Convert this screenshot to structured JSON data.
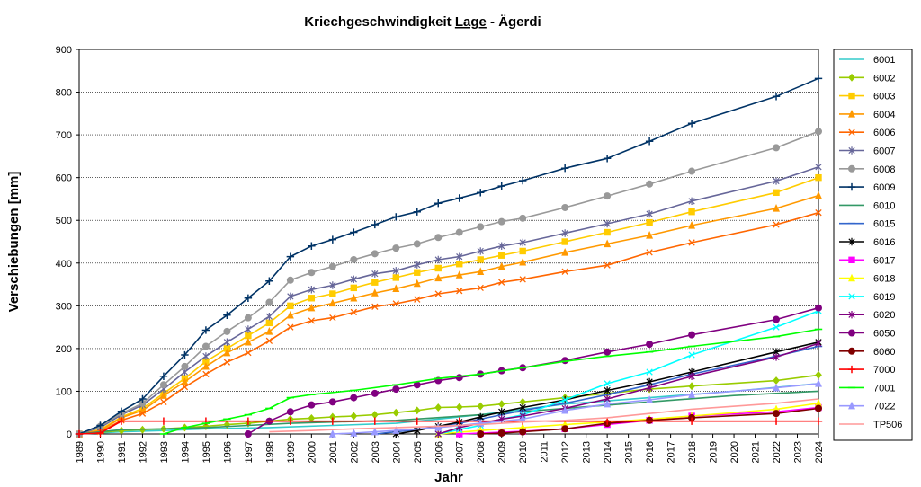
{
  "chart_data": {
    "type": "line",
    "title": "Kriechgeschwindigkeit Lage - Ägerdi",
    "title_parts": [
      "Kriechgeschwindigkeit ",
      "Lage",
      " - Ägerdi"
    ],
    "xlabel": "Jahr",
    "ylabel": "Verschiebungen   [mm]",
    "xlim": [
      1989,
      2024
    ],
    "ylim": [
      0,
      900
    ],
    "yticks": [
      0,
      100,
      200,
      300,
      400,
      500,
      600,
      700,
      800,
      900
    ],
    "grid": "horizontal",
    "legend": "right",
    "series": [
      {
        "name": "6001",
        "color": "#33CCCC",
        "marker": "none",
        "x": [
          1989,
          1991,
          1993,
          1995,
          1998,
          2001,
          2004,
          2008,
          2012,
          2016,
          2020,
          2024
        ],
        "y": [
          0,
          5,
          8,
          12,
          15,
          20,
          25,
          45,
          70,
          85,
          100,
          118
        ]
      },
      {
        "name": "6002",
        "color": "#99CC00",
        "marker": "diamond",
        "x": [
          1989,
          1991,
          1992,
          1993,
          1994,
          1995,
          1996,
          1997,
          1998,
          1999,
          2000,
          2001,
          2002,
          2003,
          2004,
          2005,
          2006,
          2007,
          2008,
          2009,
          2010,
          2012,
          2014,
          2016,
          2018,
          2022,
          2024
        ],
        "y": [
          0,
          8,
          10,
          12,
          15,
          18,
          22,
          25,
          30,
          35,
          37,
          40,
          42,
          45,
          50,
          55,
          62,
          63,
          65,
          70,
          75,
          85,
          95,
          105,
          112,
          125,
          138
        ]
      },
      {
        "name": "6003",
        "color": "#FFCC00",
        "marker": "square",
        "x": [
          1989,
          1990,
          1991,
          1992,
          1993,
          1994,
          1995,
          1996,
          1997,
          1998,
          1999,
          2000,
          2001,
          2002,
          2003,
          2004,
          2005,
          2006,
          2007,
          2008,
          2009,
          2010,
          2012,
          2014,
          2016,
          2018,
          2022,
          2024
        ],
        "y": [
          0,
          10,
          40,
          60,
          95,
          130,
          170,
          200,
          230,
          260,
          300,
          318,
          328,
          342,
          355,
          366,
          378,
          388,
          398,
          408,
          418,
          428,
          450,
          472,
          495,
          520,
          565,
          600
        ]
      },
      {
        "name": "6004",
        "color": "#FF9900",
        "marker": "triangle",
        "x": [
          1989,
          1990,
          1991,
          1992,
          1993,
          1994,
          1995,
          1996,
          1997,
          1998,
          1999,
          2000,
          2001,
          2002,
          2003,
          2004,
          2005,
          2006,
          2007,
          2008,
          2009,
          2010,
          2012,
          2014,
          2016,
          2018,
          2022,
          2024
        ],
        "y": [
          0,
          8,
          38,
          55,
          90,
          122,
          158,
          190,
          215,
          240,
          278,
          295,
          306,
          318,
          330,
          340,
          352,
          365,
          372,
          380,
          392,
          402,
          425,
          445,
          465,
          488,
          528,
          558
        ]
      },
      {
        "name": "6006",
        "color": "#FF6600",
        "marker": "x",
        "x": [
          1989,
          1990,
          1991,
          1992,
          1993,
          1994,
          1995,
          1996,
          1997,
          1998,
          1999,
          2000,
          2001,
          2002,
          2003,
          2004,
          2005,
          2006,
          2007,
          2008,
          2009,
          2010,
          2012,
          2014,
          2016,
          2018,
          2022,
          2024
        ],
        "y": [
          0,
          5,
          32,
          48,
          75,
          110,
          140,
          168,
          190,
          218,
          250,
          265,
          272,
          285,
          298,
          305,
          315,
          328,
          335,
          342,
          355,
          362,
          380,
          395,
          425,
          448,
          490,
          518
        ]
      },
      {
        "name": "6007",
        "color": "#666699",
        "marker": "star",
        "x": [
          1989,
          1990,
          1991,
          1992,
          1993,
          1994,
          1995,
          1996,
          1997,
          1998,
          1999,
          2000,
          2001,
          2002,
          2003,
          2004,
          2005,
          2006,
          2007,
          2008,
          2009,
          2010,
          2012,
          2014,
          2016,
          2018,
          2022,
          2024
        ],
        "y": [
          0,
          15,
          45,
          68,
          105,
          145,
          182,
          215,
          245,
          275,
          322,
          338,
          348,
          362,
          375,
          382,
          396,
          408,
          415,
          428,
          440,
          448,
          470,
          492,
          515,
          545,
          592,
          625
        ]
      },
      {
        "name": "6008",
        "color": "#999999",
        "marker": "circle",
        "x": [
          1989,
          1990,
          1991,
          1992,
          1993,
          1994,
          1995,
          1996,
          1997,
          1998,
          1999,
          2000,
          2001,
          2002,
          2003,
          2004,
          2005,
          2006,
          2007,
          2008,
          2009,
          2010,
          2012,
          2014,
          2016,
          2018,
          2022,
          2024
        ],
        "y": [
          0,
          18,
          48,
          72,
          115,
          158,
          205,
          240,
          272,
          308,
          360,
          378,
          392,
          408,
          422,
          435,
          445,
          460,
          472,
          485,
          497,
          505,
          530,
          557,
          585,
          615,
          670,
          708
        ]
      },
      {
        "name": "6009",
        "color": "#003366",
        "marker": "plus",
        "x": [
          1989,
          1990,
          1991,
          1992,
          1993,
          1994,
          1995,
          1996,
          1997,
          1998,
          1999,
          2000,
          2001,
          2002,
          2003,
          2004,
          2005,
          2006,
          2007,
          2008,
          2009,
          2010,
          2012,
          2014,
          2016,
          2018,
          2022,
          2024
        ],
        "y": [
          0,
          20,
          53,
          82,
          135,
          185,
          243,
          278,
          318,
          358,
          415,
          440,
          455,
          472,
          490,
          508,
          520,
          540,
          552,
          565,
          580,
          593,
          622,
          645,
          685,
          727,
          790,
          832
        ]
      },
      {
        "name": "6010",
        "color": "#339966",
        "marker": "none",
        "x": [
          1989,
          1991,
          1993,
          1995,
          1997,
          1999,
          2001,
          2004,
          2008,
          2012,
          2016,
          2020,
          2024
        ],
        "y": [
          0,
          10,
          12,
          15,
          20,
          25,
          28,
          32,
          45,
          60,
          75,
          90,
          100
        ]
      },
      {
        "name": "6015",
        "color": "#3366CC",
        "marker": "dash",
        "x": [
          2003,
          2004,
          2005,
          2006,
          2007,
          2008,
          2009,
          2010,
          2012,
          2014,
          2016,
          2018,
          2022,
          2024
        ],
        "y": [
          0,
          5,
          10,
          18,
          25,
          35,
          45,
          55,
          72,
          92,
          115,
          140,
          182,
          205
        ]
      },
      {
        "name": "6016",
        "color": "#000000",
        "marker": "star",
        "x": [
          2004,
          2005,
          2006,
          2007,
          2008,
          2009,
          2010,
          2012,
          2014,
          2016,
          2018,
          2022,
          2024
        ],
        "y": [
          0,
          8,
          18,
          28,
          40,
          52,
          62,
          80,
          102,
          122,
          145,
          192,
          215
        ]
      },
      {
        "name": "6017",
        "color": "#FF00FF",
        "marker": "square",
        "x": [
          2007,
          2008,
          2009,
          2010,
          2012,
          2014,
          2016,
          2018,
          2022,
          2024
        ],
        "y": [
          0,
          2,
          4,
          6,
          12,
          22,
          32,
          42,
          52,
          62
        ]
      },
      {
        "name": "6018",
        "color": "#FFFF00",
        "marker": "triangle",
        "x": [
          2006,
          2008,
          2010,
          2012,
          2014,
          2016,
          2018,
          2022,
          2024
        ],
        "y": [
          0,
          8,
          15,
          22,
          28,
          35,
          42,
          58,
          72
        ]
      },
      {
        "name": "6019",
        "color": "#00FFFF",
        "marker": "x",
        "x": [
          2006,
          2007,
          2008,
          2009,
          2010,
          2012,
          2014,
          2016,
          2018,
          2022,
          2024
        ],
        "y": [
          0,
          10,
          20,
          35,
          45,
          80,
          118,
          145,
          185,
          250,
          288
        ]
      },
      {
        "name": "6020",
        "color": "#800080",
        "marker": "star",
        "x": [
          2006,
          2007,
          2008,
          2009,
          2010,
          2012,
          2014,
          2016,
          2018,
          2022,
          2024
        ],
        "y": [
          0,
          15,
          25,
          35,
          42,
          60,
          82,
          108,
          135,
          180,
          212
        ]
      },
      {
        "name": "6050",
        "color": "#800080",
        "marker": "circle",
        "x": [
          1997,
          1998,
          1999,
          2000,
          2001,
          2002,
          2003,
          2004,
          2005,
          2006,
          2007,
          2008,
          2009,
          2010,
          2012,
          2014,
          2016,
          2018,
          2022,
          2024
        ],
        "y": [
          0,
          30,
          52,
          68,
          75,
          85,
          95,
          105,
          115,
          125,
          132,
          140,
          148,
          155,
          172,
          192,
          210,
          232,
          268,
          295
        ]
      },
      {
        "name": "6060",
        "color": "#800000",
        "marker": "circle",
        "x": [
          2008,
          2009,
          2010,
          2012,
          2014,
          2016,
          2018,
          2022,
          2024
        ],
        "y": [
          0,
          2,
          5,
          12,
          25,
          32,
          38,
          48,
          60
        ]
      },
      {
        "name": "7000",
        "color": "#FF0000",
        "marker": "plus",
        "x": [
          1989,
          1990,
          1991,
          1993,
          1995,
          1997,
          1999,
          2001,
          2003,
          2005,
          2007,
          2010,
          2014,
          2018,
          2022,
          2024
        ],
        "y": [
          0,
          2,
          30,
          30,
          30,
          30,
          30,
          30,
          30,
          30,
          30,
          30,
          30,
          30,
          30,
          30
        ]
      },
      {
        "name": "7001",
        "color": "#00FF00",
        "marker": "dash",
        "x": [
          1993,
          1994,
          1995,
          1996,
          1997,
          1998,
          1999,
          2000,
          2002,
          2004,
          2006,
          2008,
          2010,
          2012,
          2014,
          2016,
          2018,
          2022,
          2024
        ],
        "y": [
          0,
          15,
          25,
          35,
          45,
          60,
          85,
          92,
          102,
          115,
          130,
          140,
          155,
          170,
          182,
          192,
          205,
          228,
          245
        ]
      },
      {
        "name": "7022",
        "color": "#9999FF",
        "marker": "triangle",
        "x": [
          2001,
          2002,
          2003,
          2004,
          2006,
          2008,
          2010,
          2012,
          2014,
          2016,
          2018,
          2022,
          2024
        ],
        "y": [
          0,
          2,
          5,
          8,
          15,
          25,
          35,
          55,
          70,
          80,
          92,
          108,
          118
        ]
      },
      {
        "name": "TP506",
        "color": "#FF9999",
        "marker": "none",
        "x": [
          1998,
          2000,
          2002,
          2004,
          2006,
          2008,
          2010,
          2012,
          2014,
          2016,
          2018,
          2022,
          2024
        ],
        "y": [
          5,
          8,
          12,
          15,
          18,
          22,
          28,
          32,
          38,
          48,
          58,
          72,
          82
        ]
      }
    ]
  }
}
